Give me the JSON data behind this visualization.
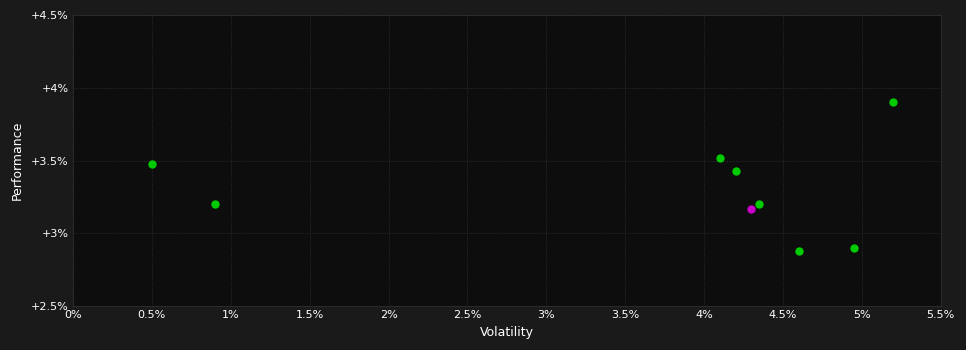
{
  "background_color": "#1a1a1a",
  "plot_bg_color": "#0d0d0d",
  "grid_color": "#333333",
  "text_color": "#ffffff",
  "xlabel": "Volatility",
  "ylabel": "Performance",
  "xlim": [
    0.0,
    0.055
  ],
  "ylim": [
    0.025,
    0.045
  ],
  "xticks": [
    0.0,
    0.005,
    0.01,
    0.015,
    0.02,
    0.025,
    0.03,
    0.035,
    0.04,
    0.045,
    0.05,
    0.055
  ],
  "yticks": [
    0.025,
    0.03,
    0.035,
    0.04,
    0.045
  ],
  "xtick_labels": [
    "0%",
    "0.5%",
    "1%",
    "1.5%",
    "2%",
    "2.5%",
    "3%",
    "3.5%",
    "4%",
    "4.5%",
    "5%",
    "5.5%"
  ],
  "ytick_labels": [
    "+2.5%",
    "+3%",
    "+3.5%",
    "+4%",
    "+4.5%"
  ],
  "points_green": [
    [
      0.005,
      0.0348
    ],
    [
      0.009,
      0.032
    ],
    [
      0.041,
      0.0352
    ],
    [
      0.042,
      0.0343
    ],
    [
      0.0435,
      0.032
    ],
    [
      0.046,
      0.0288
    ],
    [
      0.0495,
      0.029
    ],
    [
      0.052,
      0.039
    ]
  ],
  "point_magenta": [
    [
      0.043,
      0.0317
    ]
  ],
  "marker_size": 5
}
